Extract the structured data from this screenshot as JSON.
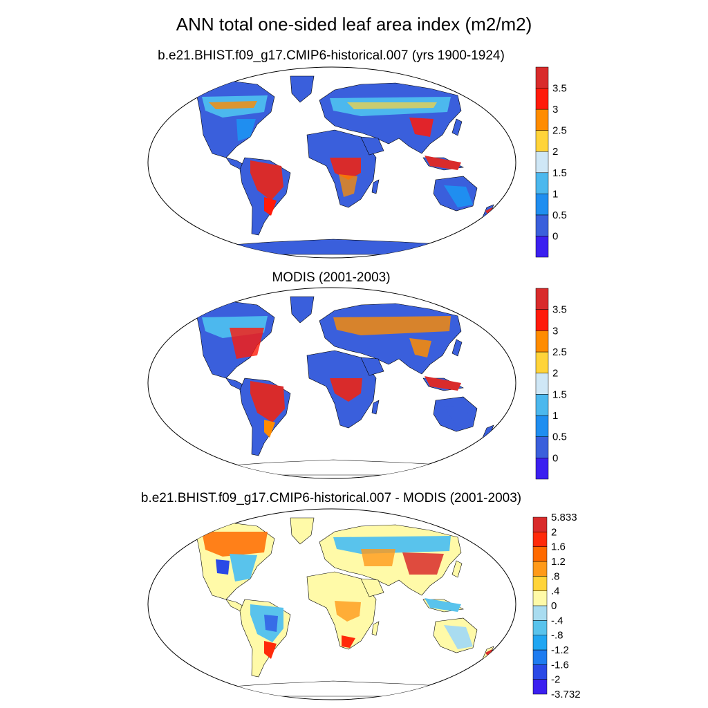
{
  "figure": {
    "title": "ANN total one-sided leaf area index (m2/m2)"
  },
  "panels": [
    {
      "title": "b.e21.BHIST.f09_g17.CMIP6-historical.007 (yrs 1900-1924)",
      "kind": "absolute"
    },
    {
      "title": "MODIS (2001-2003)",
      "kind": "absolute"
    },
    {
      "title": "b.e21.BHIST.f09_g17.CMIP6-historical.007 - MODIS (2001-2003)",
      "kind": "difference"
    }
  ],
  "colorbars": {
    "absolute": {
      "labels": [
        "3.5",
        "3",
        "2.5",
        "2",
        "1.5",
        "1",
        "0.5",
        "0"
      ],
      "colors": [
        "#3b1ff0",
        "#3a5fdc",
        "#1f8ef0",
        "#4cb8ee",
        "#cfe7f6",
        "#ffd43a",
        "#ff8c00",
        "#ff1a0a",
        "#d92b2b"
      ]
    },
    "difference": {
      "labels": [
        "5.833",
        "2",
        "1.6",
        "1.2",
        ".8",
        ".4",
        "0",
        "-.4",
        "-.8",
        "-1.2",
        "-1.6",
        "-2",
        "-3.732"
      ],
      "colors": [
        "#3b1ff0",
        "#2a49e6",
        "#1e7cf0",
        "#20a6f2",
        "#59c3ec",
        "#a9dcf0",
        "#fffaa8",
        "#ffd43a",
        "#ff9a1a",
        "#ff6a00",
        "#ff2a0a",
        "#d92b2b"
      ]
    }
  }
}
